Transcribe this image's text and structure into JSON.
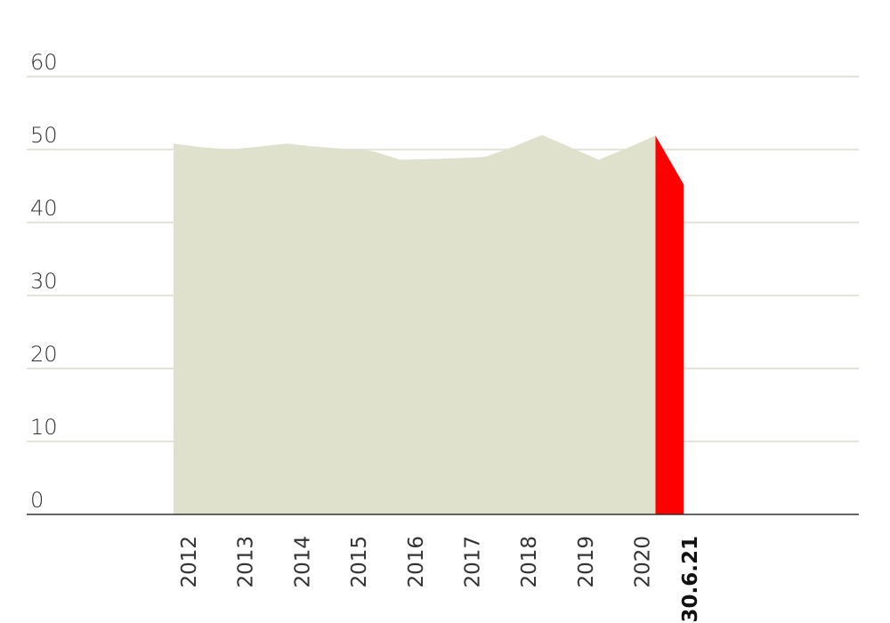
{
  "chart_data": {
    "type": "area",
    "title": "",
    "xlabel": "",
    "ylabel": "",
    "ylim": [
      0,
      60
    ],
    "yticks": [
      0,
      10,
      20,
      30,
      40,
      50,
      60
    ],
    "categories": [
      "2012",
      "2013",
      "2014",
      "2015",
      "2016",
      "2017",
      "2018",
      "2019",
      "2020",
      "30.6.21"
    ],
    "grid": true,
    "legend": "none",
    "series": [
      {
        "color": "#dfe1cd",
        "x": [
          2012.0,
          2012.5,
          2013.0,
          2013.5,
          2014.0,
          2014.5,
          2015.0,
          2015.5,
          2016.0,
          2016.5,
          2017.0,
          2017.5,
          2018.0,
          2018.5,
          2019.0,
          2019.5,
          2020.0,
          2020.5
        ],
        "values": [
          50.8,
          50.3,
          50.0,
          50.4,
          50.8,
          50.4,
          50.1,
          49.8,
          48.6,
          48.7,
          48.8,
          49.0,
          50.4,
          52.0,
          50.3,
          48.6,
          50.2,
          51.9
        ]
      },
      {
        "color": "#ff0000",
        "x": [
          2020.5,
          2021.0
        ],
        "values": [
          51.9,
          45.2
        ]
      }
    ]
  }
}
